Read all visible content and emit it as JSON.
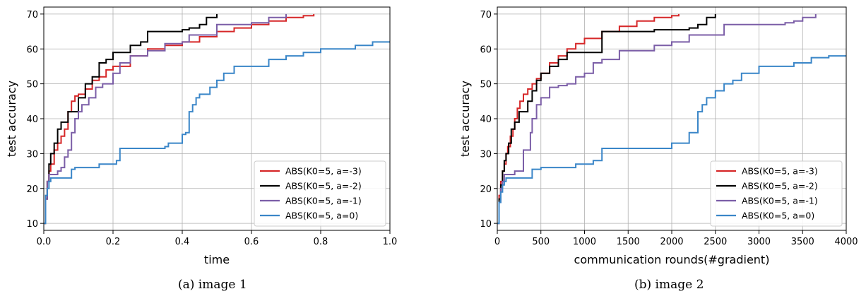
{
  "chart_data": [
    {
      "type": "line",
      "xlabel": "time",
      "ylabel": "test accuracy",
      "xlim": [
        0,
        1.0
      ],
      "ylim": [
        8,
        72
      ],
      "xticks": [
        0.0,
        0.2,
        0.4,
        0.6,
        0.8,
        1.0
      ],
      "xtick_labels": [
        "0.0",
        "0.2",
        "0.4",
        "0.6",
        "0.8",
        "1.0"
      ],
      "yticks": [
        10,
        20,
        30,
        40,
        50,
        60,
        70
      ],
      "ytick_labels": [
        "10",
        "20",
        "30",
        "40",
        "50",
        "60",
        "70"
      ],
      "grid": true,
      "legend_position": "lower-right",
      "caption": "(a)  image 1",
      "series": [
        {
          "name": "ABS(K0=5, a=-3)",
          "color": "#d62728",
          "x": [
            0.0,
            0.005,
            0.01,
            0.015,
            0.02,
            0.03,
            0.04,
            0.05,
            0.06,
            0.07,
            0.08,
            0.09,
            0.1,
            0.12,
            0.14,
            0.16,
            0.18,
            0.2,
            0.25,
            0.3,
            0.35,
            0.4,
            0.45,
            0.5,
            0.55,
            0.6,
            0.65,
            0.7,
            0.75,
            0.78
          ],
          "y": [
            10,
            17,
            22,
            25,
            27,
            31,
            33,
            35,
            37,
            42,
            45,
            46.5,
            47,
            48.5,
            51,
            52,
            54,
            55,
            58,
            60,
            61,
            62,
            63.5,
            65,
            66,
            67,
            68,
            69,
            69.5,
            70
          ]
        },
        {
          "name": "ABS(K0=5, a=-2)",
          "color": "#000000",
          "x": [
            0.0,
            0.005,
            0.01,
            0.015,
            0.02,
            0.03,
            0.04,
            0.05,
            0.06,
            0.07,
            0.08,
            0.1,
            0.12,
            0.14,
            0.16,
            0.18,
            0.2,
            0.22,
            0.25,
            0.28,
            0.3,
            0.32,
            0.35,
            0.4,
            0.42,
            0.45,
            0.47,
            0.5
          ],
          "y": [
            10,
            17,
            22,
            27,
            30,
            33,
            37,
            39,
            39,
            42,
            42,
            46,
            50,
            52,
            56,
            57,
            59,
            59,
            61,
            62,
            65,
            65,
            65,
            65.5,
            66,
            67,
            69,
            70
          ]
        },
        {
          "name": "ABS(K0=5, a=-1)",
          "color": "#7b5ea7",
          "x": [
            0.0,
            0.005,
            0.01,
            0.015,
            0.02,
            0.04,
            0.05,
            0.06,
            0.07,
            0.08,
            0.09,
            0.1,
            0.11,
            0.13,
            0.15,
            0.17,
            0.2,
            0.22,
            0.25,
            0.3,
            0.35,
            0.4,
            0.42,
            0.5,
            0.6,
            0.65,
            0.7
          ],
          "y": [
            10,
            17,
            22,
            24,
            24,
            25,
            26,
            29,
            31,
            36,
            40,
            42,
            44,
            46,
            49,
            50,
            53,
            56,
            58,
            59.5,
            61.5,
            62,
            64,
            67,
            67.5,
            69,
            70
          ]
        },
        {
          "name": "ABS(K0=5, a=0)",
          "color": "#3a86c8",
          "x": [
            0.0,
            0.005,
            0.01,
            0.015,
            0.02,
            0.04,
            0.06,
            0.08,
            0.09,
            0.12,
            0.16,
            0.2,
            0.21,
            0.22,
            0.3,
            0.35,
            0.36,
            0.39,
            0.4,
            0.41,
            0.42,
            0.43,
            0.44,
            0.45,
            0.48,
            0.5,
            0.52,
            0.55,
            0.6,
            0.65,
            0.7,
            0.75,
            0.8,
            0.85,
            0.9,
            0.95,
            1.0
          ],
          "y": [
            10,
            18,
            20,
            22,
            23,
            23,
            23,
            25.5,
            26,
            26,
            27,
            27,
            28,
            31.5,
            31.5,
            32,
            33,
            33,
            35.5,
            36,
            42,
            44,
            46,
            47,
            49,
            51,
            53,
            55,
            55,
            57,
            58,
            59,
            60,
            60,
            61,
            62,
            62
          ]
        }
      ]
    },
    {
      "type": "line",
      "xlabel": "communication rounds(#gradient)",
      "ylabel": "test accuracy",
      "xlim": [
        0,
        4000
      ],
      "ylim": [
        8,
        72
      ],
      "xticks": [
        0,
        500,
        1000,
        1500,
        2000,
        2500,
        3000,
        3500,
        4000
      ],
      "xtick_labels": [
        "0",
        "500",
        "1000",
        "1500",
        "2000",
        "2500",
        "3000",
        "3500",
        "4000"
      ],
      "yticks": [
        10,
        20,
        30,
        40,
        50,
        60,
        70
      ],
      "ytick_labels": [
        "10",
        "20",
        "30",
        "40",
        "50",
        "60",
        "70"
      ],
      "grid": true,
      "legend_position": "lower-right",
      "caption": "(b)  image 2",
      "series": [
        {
          "name": "ABS(K0=5, a=-3)",
          "color": "#d62728",
          "x": [
            0,
            20,
            40,
            60,
            80,
            100,
            120,
            150,
            180,
            200,
            230,
            260,
            300,
            350,
            400,
            450,
            500,
            600,
            700,
            800,
            900,
            1000,
            1200,
            1400,
            1600,
            1800,
            2000,
            2080
          ],
          "y": [
            10,
            18,
            22,
            25,
            27,
            30,
            32,
            35,
            37,
            40,
            43,
            45,
            47,
            48.5,
            50,
            51.5,
            53,
            56,
            58,
            60,
            61.5,
            63,
            65,
            66.5,
            68,
            69,
            69.5,
            70
          ]
        },
        {
          "name": "ABS(K0=5, a=-2)",
          "color": "#000000",
          "x": [
            0,
            20,
            40,
            60,
            80,
            100,
            130,
            160,
            200,
            250,
            300,
            350,
            400,
            450,
            500,
            600,
            700,
            800,
            1000,
            1200,
            1400,
            1600,
            1800,
            2000,
            2200,
            2300,
            2400,
            2500
          ],
          "y": [
            10,
            17,
            21,
            25,
            28,
            30,
            33,
            37,
            39,
            42,
            42,
            45,
            48,
            51,
            53,
            55,
            57,
            59,
            59,
            65,
            65,
            65,
            65.5,
            65.5,
            66,
            67,
            69,
            70
          ]
        },
        {
          "name": "ABS(K0=5, a=-1)",
          "color": "#7b5ea7",
          "x": [
            0,
            20,
            40,
            60,
            80,
            100,
            200,
            300,
            350,
            380,
            400,
            450,
            500,
            600,
            700,
            800,
            900,
            1000,
            1100,
            1200,
            1400,
            1600,
            1800,
            2000,
            2200,
            2600,
            3000,
            3300,
            3400,
            3500,
            3650
          ],
          "y": [
            10,
            16,
            20,
            22,
            24,
            24,
            25,
            31,
            31,
            36,
            40,
            44,
            46,
            49,
            49.5,
            50,
            52,
            53,
            56,
            57,
            59.5,
            59.5,
            61,
            62,
            64,
            67,
            67,
            67.5,
            68,
            69,
            70
          ]
        },
        {
          "name": "ABS(K0=5, a=0)",
          "color": "#3a86c8",
          "x": [
            0,
            20,
            40,
            60,
            80,
            100,
            200,
            300,
            400,
            500,
            700,
            900,
            1000,
            1100,
            1200,
            1300,
            1600,
            2000,
            2100,
            2200,
            2300,
            2350,
            2400,
            2500,
            2600,
            2700,
            2800,
            3000,
            3200,
            3400,
            3600,
            3800,
            4000
          ],
          "y": [
            10,
            16,
            19,
            21,
            22,
            23,
            23,
            23,
            25.5,
            26,
            26,
            27,
            27,
            28,
            31.5,
            31.5,
            31.5,
            33,
            33,
            36,
            42,
            44,
            46,
            48,
            50,
            51,
            53,
            55,
            55,
            56,
            57.5,
            58,
            58
          ]
        }
      ]
    }
  ]
}
